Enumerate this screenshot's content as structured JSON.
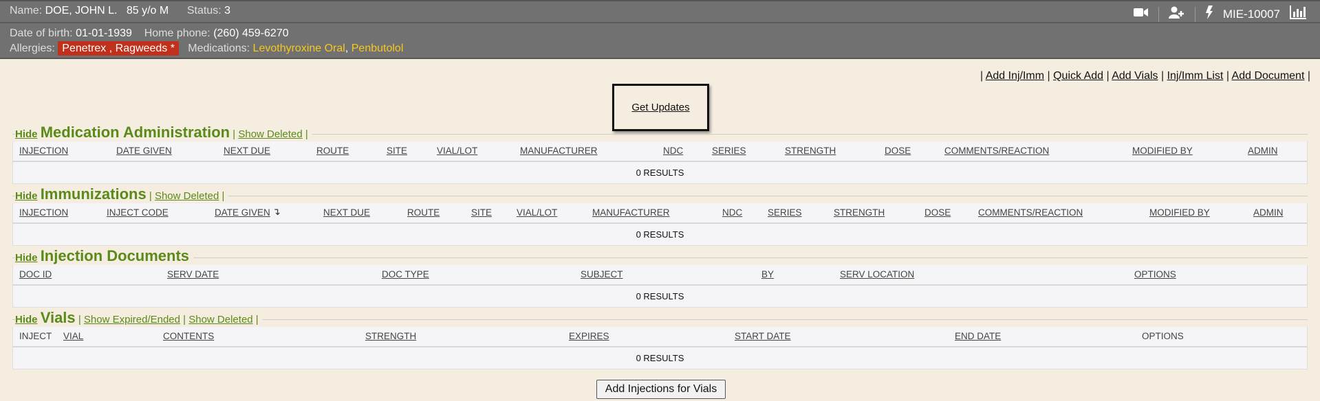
{
  "patient": {
    "name_label": "Name:",
    "name": "DOE, JOHN L.",
    "age": "85 y/o M",
    "status_label": "Status:",
    "status": "3",
    "dob_label": "Date of birth:",
    "dob": "01-01-1939",
    "phone_label": "Home phone:",
    "phone": "(260) 459-6270",
    "allergies_label": "Allergies:",
    "allergies": "Penetrex , Ragweeds *",
    "medications_label": "Medications:",
    "medications": [
      "Levothyroxine Oral",
      "Penbutolol"
    ],
    "comma": ","
  },
  "header_icons": [
    "video-camera-icon",
    "add-user-icon",
    "lightning-icon",
    "bar-chart-icon"
  ],
  "account_id": "MIE-10007",
  "top_links": [
    "Add Inj/Imm",
    "Quick Add",
    "Add Vials",
    "Inj/Imm List",
    "Add Document"
  ],
  "get_updates": "Get Updates",
  "hide_label": "Hide",
  "sections": {
    "med_admin": {
      "title": "Medication Administration",
      "links": [
        "Show Deleted"
      ],
      "columns": [
        "INJECTION",
        "DATE GIVEN",
        "NEXT DUE",
        "ROUTE",
        "SITE",
        "VIAL/LOT",
        "MANUFACTURER",
        "NDC",
        "SERIES",
        "STRENGTH",
        "DOSE",
        "COMMENTS/REACTION",
        "MODIFIED BY",
        "ADMIN"
      ],
      "results": "0 RESULTS"
    },
    "immunizations": {
      "title": "Immunizations",
      "links": [
        "Show Deleted"
      ],
      "columns": [
        "INJECTION",
        "INJECT CODE",
        "DATE GIVEN",
        "NEXT DUE",
        "ROUTE",
        "SITE",
        "VIAL/LOT",
        "MANUFACTURER",
        "NDC",
        "SERIES",
        "STRENGTH",
        "DOSE",
        "COMMENTS/REACTION",
        "MODIFIED BY",
        "ADMIN"
      ],
      "sort_column": "DATE GIVEN",
      "results": "0 RESULTS"
    },
    "documents": {
      "title": "Injection Documents",
      "links": [],
      "columns": [
        "DOC ID",
        "SERV DATE",
        "DOC TYPE",
        "SUBJECT",
        "BY",
        "SERV LOCATION",
        "OPTIONS"
      ],
      "results": "0 RESULTS"
    },
    "vials": {
      "title": "Vials",
      "links": [
        "Show Expired/Ended",
        "Show Deleted"
      ],
      "columns": [
        "INJECT",
        "VIAL",
        "CONTENTS",
        "STRENGTH",
        "EXPIRES",
        "START DATE",
        "END DATE",
        "OPTIONS"
      ],
      "results": "0 RESULTS"
    }
  },
  "add_injections_button": "Add Injections for Vials",
  "colors": {
    "header_bg": "#717171",
    "page_bg": "#f5eddf",
    "accent_green": "#5a8a1a",
    "allergy_bg": "#c0301b",
    "medication_text": "#f4c81e"
  }
}
